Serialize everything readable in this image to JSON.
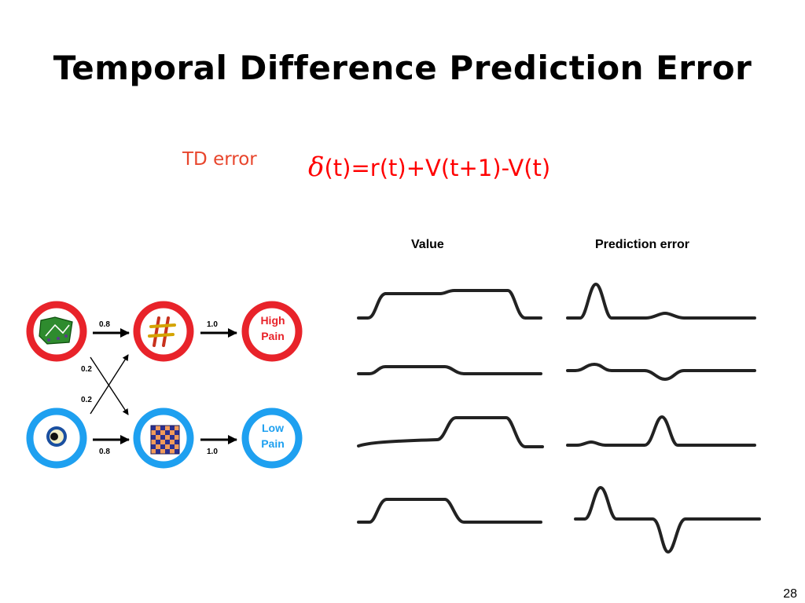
{
  "slide": {
    "title": "Temporal Difference Prediction Error",
    "td_label": "TD error",
    "formula": {
      "symbol": "δ",
      "expression": "(t)=r(t)+V(t+1)-V(t)"
    },
    "columns": {
      "value": "Value",
      "prediction_error": "Prediction error"
    },
    "page_number": "28"
  },
  "diagram": {
    "outcomes": {
      "high": {
        "line1": "High",
        "line2": "Pain",
        "color": "#e8232a"
      },
      "low": {
        "line1": "Low",
        "line2": "Pain",
        "color": "#1ea0f0"
      }
    },
    "edges": {
      "top_first": "0.8",
      "top_second": "1.0",
      "bottom_first": "0.8",
      "bottom_second": "1.0",
      "cross_down": "0.2",
      "cross_up": "0.2"
    },
    "icons": [
      "green-stimulus-icon",
      "hash-stimulus-icon",
      "eye-stimulus-icon",
      "checker-stimulus-icon"
    ]
  }
}
